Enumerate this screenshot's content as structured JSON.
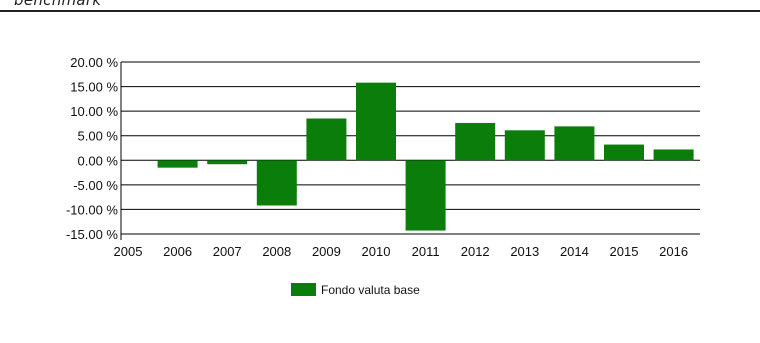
{
  "header": {
    "title": "benchmark"
  },
  "chart_data": {
    "type": "bar",
    "categories": [
      "2006",
      "2007",
      "2008",
      "2009",
      "2010",
      "2011",
      "2012",
      "2013",
      "2014",
      "2015",
      "2016"
    ],
    "x_tick_labels": [
      "2005",
      "2006",
      "2007",
      "2008",
      "2009",
      "2010",
      "2011",
      "2012",
      "2013",
      "2014",
      "2015",
      "2016"
    ],
    "series": [
      {
        "name": "Fondo valuta base",
        "color": "#0a7d0a",
        "values": [
          -1.5,
          -0.8,
          -9.2,
          8.5,
          15.8,
          -14.3,
          7.6,
          6.1,
          6.9,
          3.2,
          2.2
        ]
      }
    ],
    "ylim": [
      -15,
      20
    ],
    "yticks": [
      20,
      15,
      10,
      5,
      0,
      -5,
      -10,
      -15
    ],
    "y_tick_labels": [
      "20.00 %",
      "15.00 %",
      "10.00 %",
      "5.00 %",
      "0.00 %",
      "-5.00 %",
      "-10.00 %",
      "-15.00 %"
    ],
    "grid": true,
    "legend": "bottom-left"
  }
}
